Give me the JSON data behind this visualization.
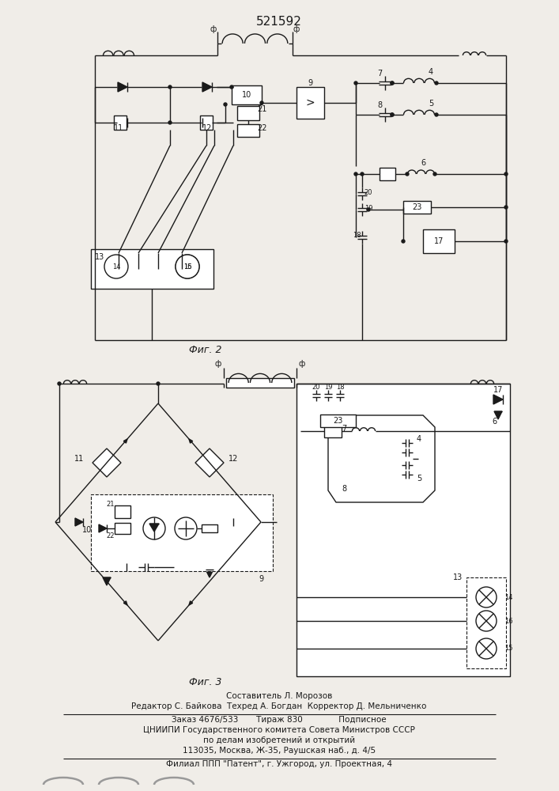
{
  "title": "521592",
  "fig2_label": "Фиг. 2",
  "fig3_label": "Фиг. 3",
  "footer_line1": "Составитель Л. Морозов",
  "footer_line2": "Редактор С. Байкова  Техред А. Богдан  Корректор Д. Мельниченко",
  "footer_line3": "Заказ 4676/533       Тираж 830              Подписное",
  "footer_line4": "ЦНИИПИ Государственного комитета Совета Министров СССР",
  "footer_line5": "по делам изобретений и открытий",
  "footer_line6": "113035, Москва, Ж-35, Раушская наб., д. 4/5",
  "footer_line7": "Филиал ППП \"Патент\", г. Ужгород, ул. Проектная, 4",
  "bg_color": "#f0ede8",
  "line_color": "#1a1a1a"
}
